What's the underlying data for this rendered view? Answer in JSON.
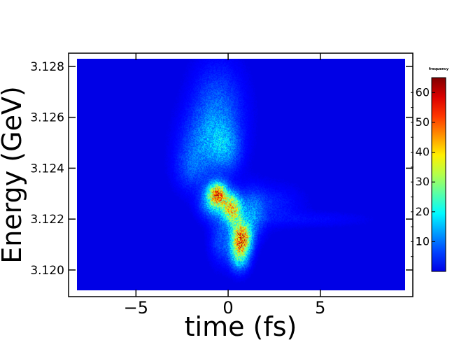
{
  "chart_data": {
    "type": "heatmap",
    "title": "",
    "xlabel": "time (fs)",
    "ylabel": "Energy (GeV)",
    "xlim": [
      -8.2,
      9.6
    ],
    "ylim": [
      3.1192,
      3.1283
    ],
    "x_ticks": [
      {
        "value": -5,
        "label": "−5"
      },
      {
        "value": 0,
        "label": "0"
      },
      {
        "value": 5,
        "label": "5"
      }
    ],
    "y_ticks": [
      {
        "value": 3.12,
        "label": "3.120"
      },
      {
        "value": 3.122,
        "label": "3.122"
      },
      {
        "value": 3.124,
        "label": "3.124"
      },
      {
        "value": 3.126,
        "label": "3.126"
      },
      {
        "value": 3.128,
        "label": "3.128"
      }
    ],
    "colorbar": {
      "label": "frequency",
      "range": [
        0,
        65
      ],
      "ticks": [
        {
          "value": 10,
          "label": "10"
        },
        {
          "value": 20,
          "label": "20"
        },
        {
          "value": 30,
          "label": "30"
        },
        {
          "value": 40,
          "label": "40"
        },
        {
          "value": 50,
          "label": "50"
        },
        {
          "value": 60,
          "label": "60"
        }
      ]
    },
    "background_value": 0,
    "hotspots": [
      {
        "x": -0.6,
        "y": 3.1262,
        "sx": 0.9,
        "sy": 0.0012,
        "value": 9
      },
      {
        "x": -1.2,
        "y": 3.125,
        "sx": 0.9,
        "sy": 0.0008,
        "value": 8
      },
      {
        "x": -2.0,
        "y": 3.124,
        "sx": 0.6,
        "sy": 0.0006,
        "value": 6
      },
      {
        "x": -0.1,
        "y": 3.1248,
        "sx": 0.5,
        "sy": 0.0006,
        "value": 8
      },
      {
        "x": -0.6,
        "y": 3.123,
        "sx": 0.35,
        "sy": 0.0003,
        "value": 42
      },
      {
        "x": -0.8,
        "y": 3.1226,
        "sx": 0.5,
        "sy": 0.0004,
        "value": 14
      },
      {
        "x": 0.2,
        "y": 3.1224,
        "sx": 0.35,
        "sy": 0.0004,
        "value": 38
      },
      {
        "x": 0.7,
        "y": 3.1213,
        "sx": 0.35,
        "sy": 0.0004,
        "value": 46
      },
      {
        "x": 0.6,
        "y": 3.1206,
        "sx": 0.35,
        "sy": 0.0004,
        "value": 22
      },
      {
        "x": 1.3,
        "y": 3.1222,
        "sx": 0.45,
        "sy": 0.0006,
        "value": 10
      },
      {
        "x": -0.4,
        "y": 3.1212,
        "sx": 0.4,
        "sy": 0.0006,
        "value": 7
      },
      {
        "x": 2.2,
        "y": 3.1226,
        "sx": 1.1,
        "sy": 0.0005,
        "value": 4
      },
      {
        "x": 4.5,
        "y": 3.122,
        "sx": 2.0,
        "sy": 0.0002,
        "value": 2
      }
    ],
    "grid": false,
    "colormap": "jet"
  }
}
